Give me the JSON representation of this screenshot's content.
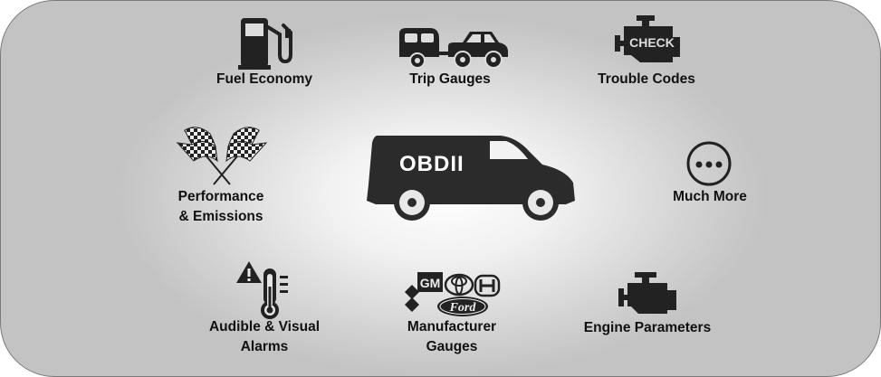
{
  "features": {
    "fuel_economy": "Fuel Economy",
    "trip_gauges": "Trip Gauges",
    "trouble_codes": "Trouble Codes",
    "performance_line1": "Performance",
    "performance_line2": "& Emissions",
    "much_more": "Much More",
    "alarms_line1": "Audible & Visual",
    "alarms_line2": "Alarms",
    "manufacturer_line1": "Manufacturer",
    "manufacturer_line2": "Gauges",
    "engine_parameters": "Engine Parameters"
  },
  "center": {
    "van_label": "OBDII"
  },
  "badges": {
    "check_text": "CHECK",
    "gm_text": "GM",
    "ford_text": "Ford"
  },
  "icons": {
    "fuel": "fuel-pump-icon",
    "trip": "camper-car-icon",
    "trouble": "check-engine-icon",
    "performance": "checkered-flags-icon",
    "more": "more-dots-icon",
    "alarms": "warning-thermometer-icon",
    "manufacturer": "manufacturer-logos-icon",
    "engine": "engine-icon"
  },
  "colors": {
    "icon": "#222222",
    "text": "#111111",
    "background_center": "#ffffff",
    "background_edge": "#c3c3c3"
  }
}
